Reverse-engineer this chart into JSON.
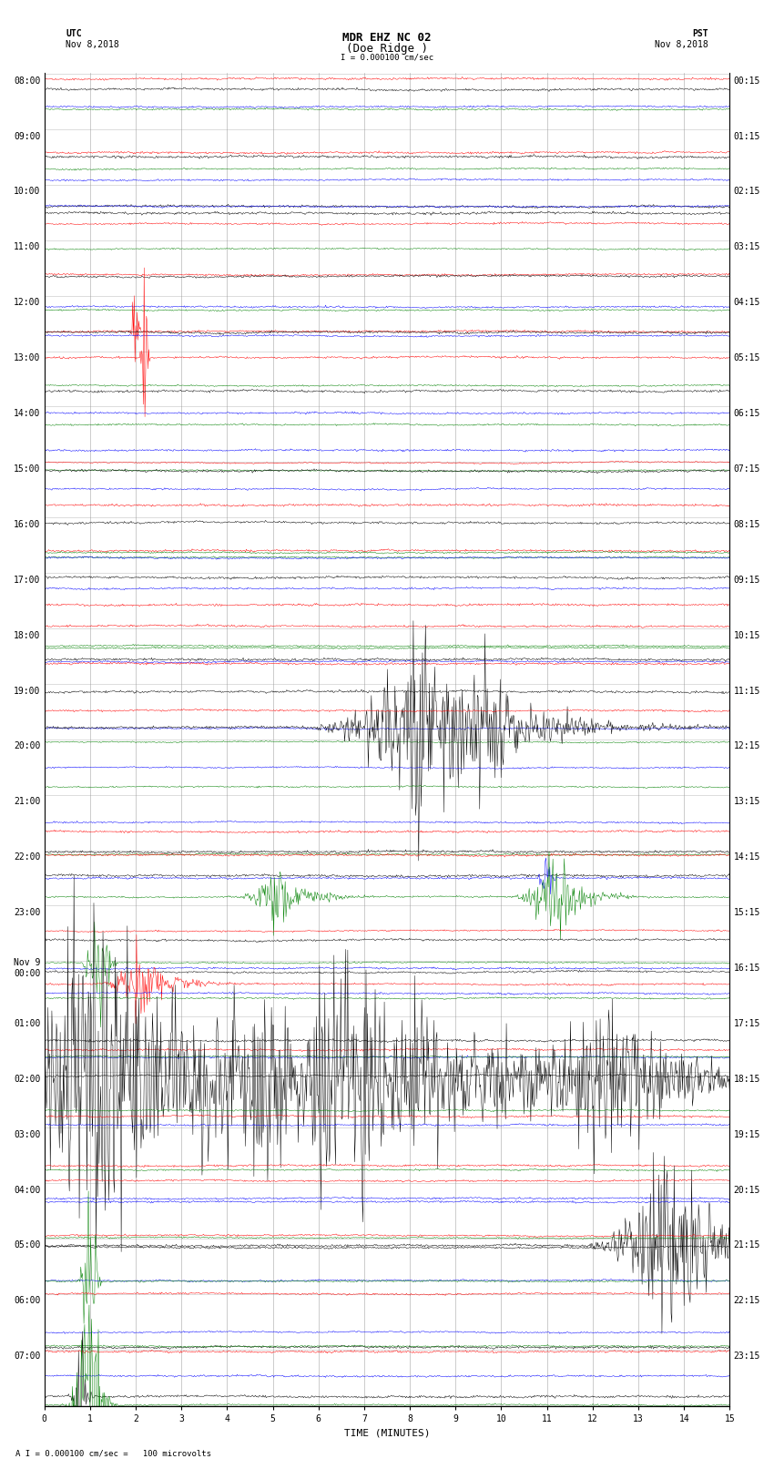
{
  "title_line1": "MDR EHZ NC 02",
  "title_line2": "(Doe Ridge )",
  "scale_text": "I = 0.000100 cm/sec",
  "label_left_top": "UTC",
  "label_left_date": "Nov 8,2018",
  "label_right_top": "PST",
  "label_right_date": "Nov 8,2018",
  "xlabel": "TIME (MINUTES)",
  "footer_text": "A I = 0.000100 cm/sec =   100 microvolts",
  "utc_hour_labels": [
    "08:00",
    "09:00",
    "10:00",
    "11:00",
    "12:00",
    "13:00",
    "14:00",
    "15:00",
    "16:00",
    "17:00",
    "18:00",
    "19:00",
    "20:00",
    "21:00",
    "22:00",
    "23:00",
    "Nov 9\n00:00",
    "01:00",
    "02:00",
    "03:00",
    "04:00",
    "05:00",
    "06:00",
    "07:00"
  ],
  "pst_hour_labels": [
    "00:15",
    "01:15",
    "02:15",
    "03:15",
    "04:15",
    "05:15",
    "06:15",
    "07:15",
    "08:15",
    "09:15",
    "10:15",
    "11:15",
    "12:15",
    "13:15",
    "14:15",
    "15:15",
    "16:15",
    "17:15",
    "18:15",
    "19:15",
    "20:15",
    "21:15",
    "22:15",
    "23:15"
  ],
  "n_hours": 24,
  "traces_per_hour": 4,
  "n_minutes": 15,
  "colors_cycle": [
    "black",
    "red",
    "blue",
    "green"
  ],
  "background_color": "white",
  "grid_color": "#999999",
  "title_fontsize": 9,
  "label_fontsize": 8,
  "tick_fontsize": 7
}
